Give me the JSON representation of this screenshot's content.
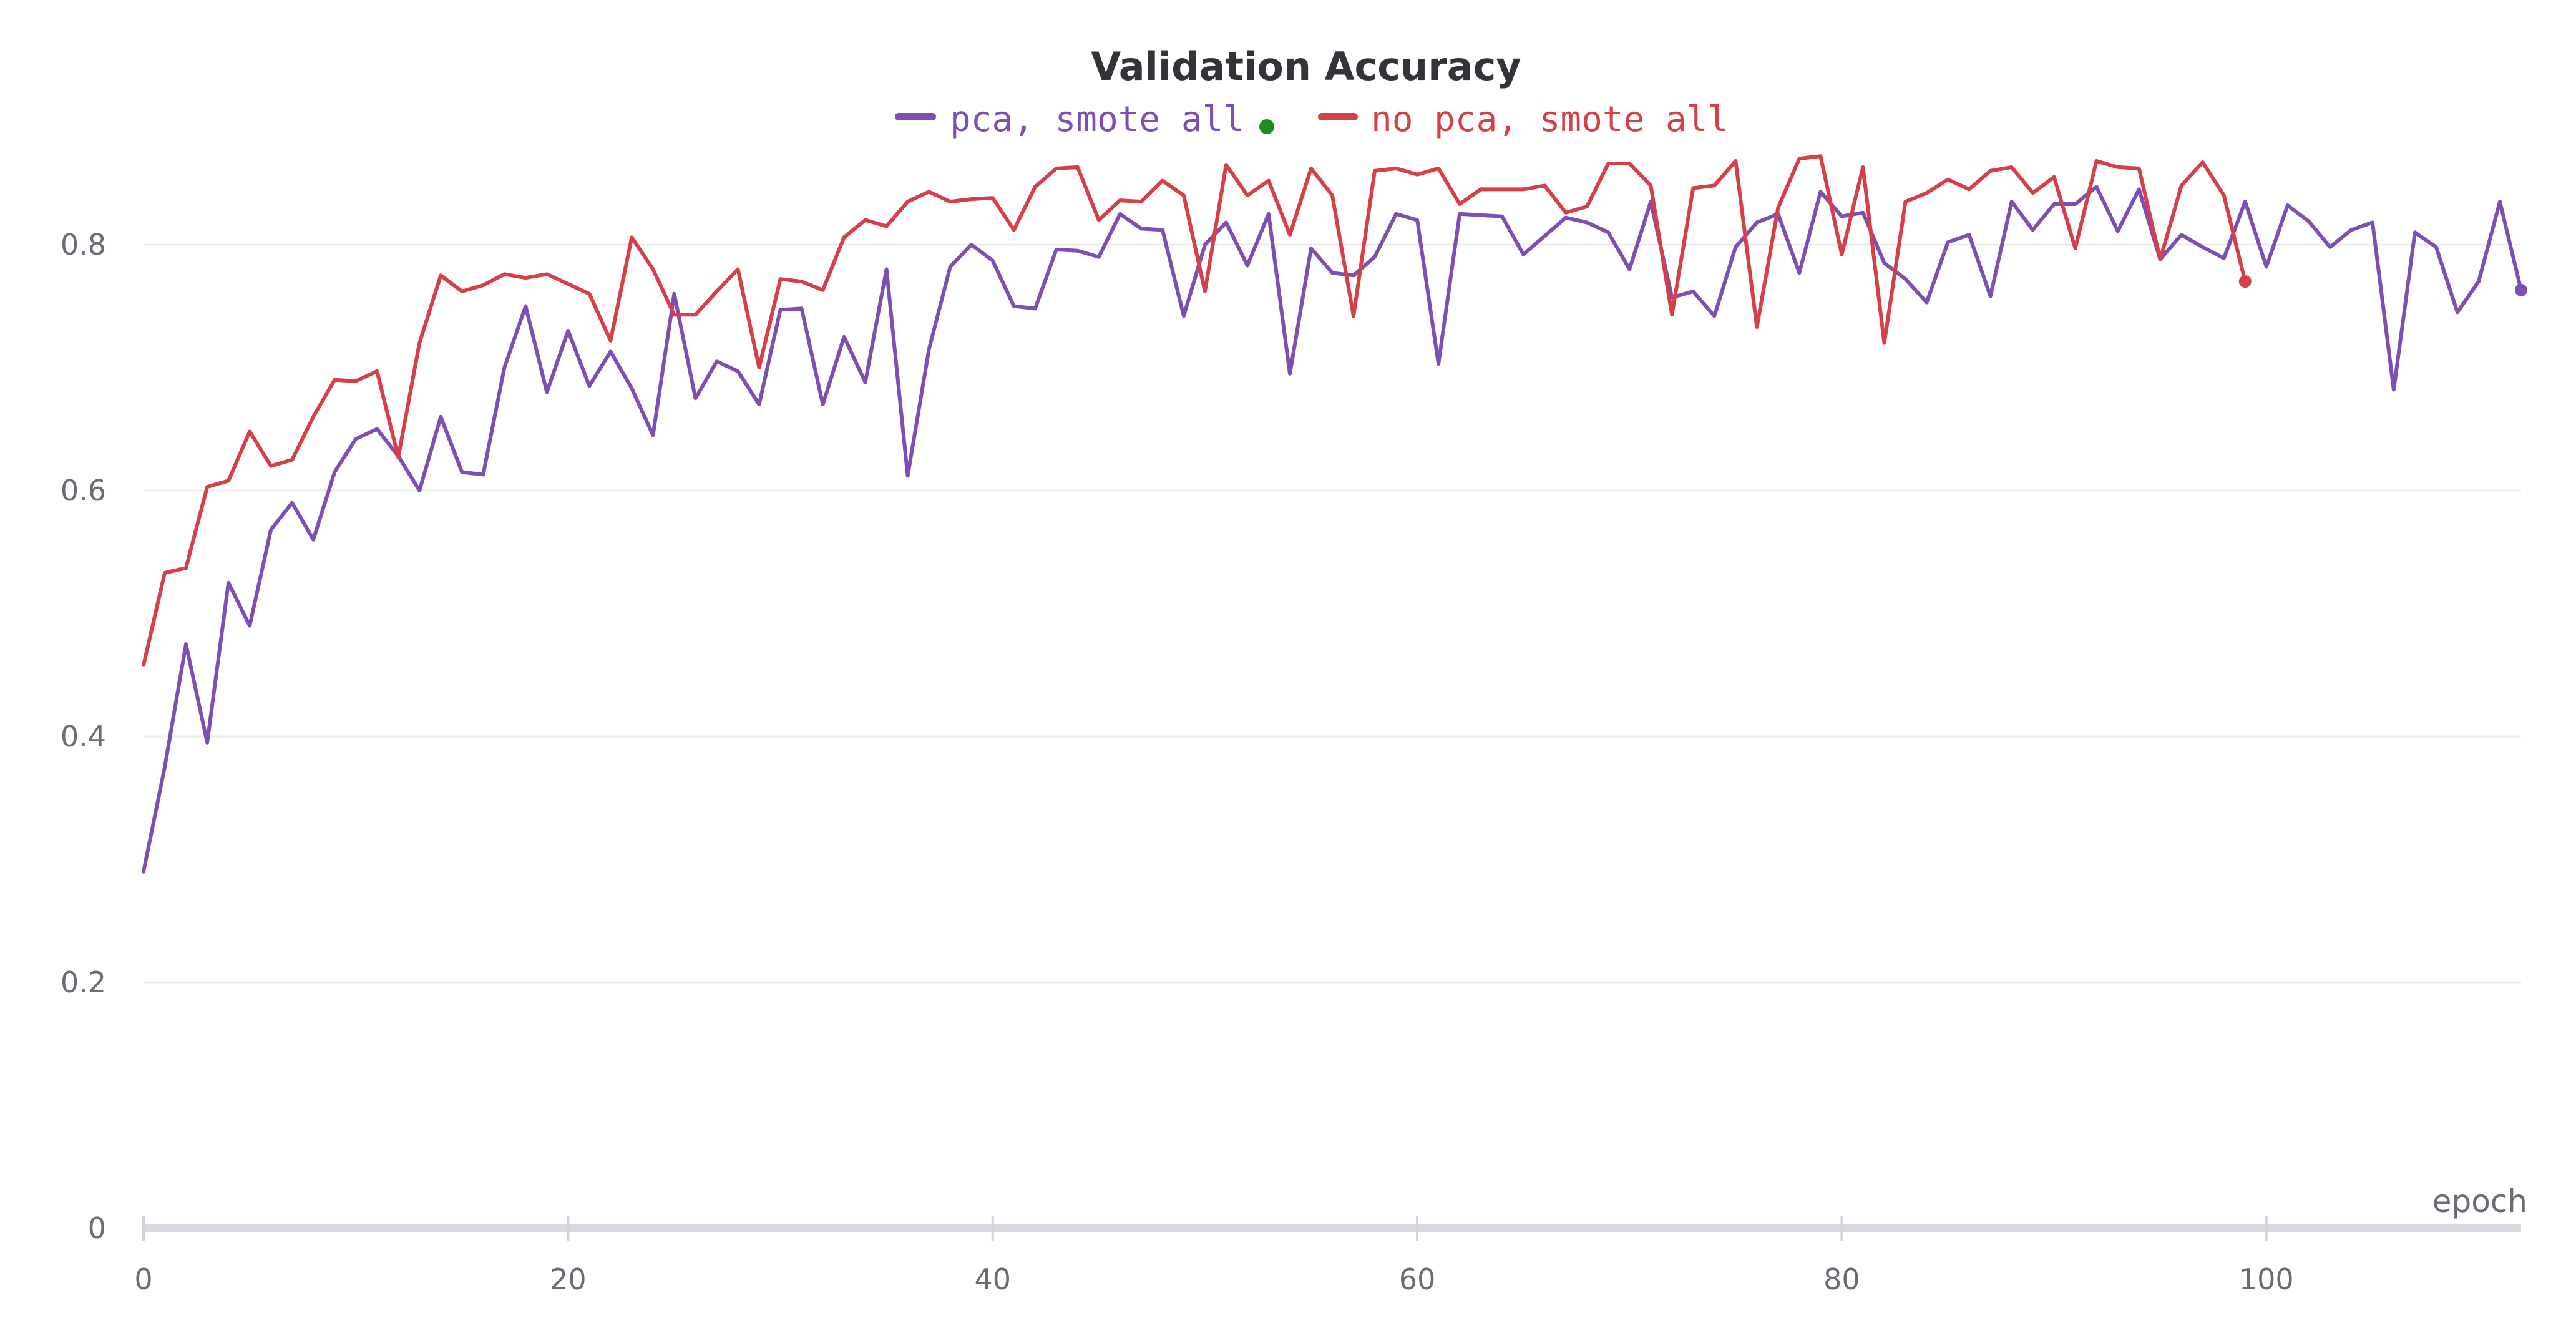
{
  "chart_data": {
    "type": "line",
    "title": "Validation Accuracy",
    "xlabel": "epoch",
    "ylabel": "",
    "xlim": [
      0,
      112
    ],
    "ylim": [
      0,
      0.9
    ],
    "x_ticks": [
      0,
      20,
      40,
      60,
      80,
      100
    ],
    "y_ticks": [
      0,
      0.2,
      0.4,
      0.6,
      0.8
    ],
    "x_tick_labels": [
      "0",
      "20",
      "40",
      "60",
      "80",
      "100"
    ],
    "y_tick_labels": [
      "0",
      "0.2",
      "0.4",
      "0.6",
      "0.8"
    ],
    "grid": true,
    "legend_position": "top-center",
    "series": [
      {
        "name": "pca, smote all",
        "color": "#7d4fb5",
        "status_dot_color": "#1e8c1e",
        "x_start": 0,
        "values": [
          0.29,
          0.375,
          0.475,
          0.395,
          0.525,
          0.49,
          0.568,
          0.59,
          0.56,
          0.615,
          0.642,
          0.65,
          0.628,
          0.6,
          0.66,
          0.615,
          0.613,
          0.7,
          0.75,
          0.68,
          0.73,
          0.685,
          0.713,
          0.683,
          0.645,
          0.76,
          0.675,
          0.705,
          0.697,
          0.67,
          0.747,
          0.748,
          0.67,
          0.725,
          0.688,
          0.78,
          0.612,
          0.715,
          0.782,
          0.8,
          0.787,
          0.75,
          0.748,
          0.796,
          0.795,
          0.79,
          0.825,
          0.813,
          0.812,
          0.742,
          0.8,
          0.818,
          0.783,
          0.825,
          0.695,
          0.797,
          0.777,
          0.775,
          0.79,
          0.825,
          0.82,
          0.703,
          0.825,
          0.824,
          0.823,
          0.792,
          0.807,
          0.822,
          0.818,
          0.81,
          0.78,
          0.835,
          0.757,
          0.762,
          0.742,
          0.798,
          0.818,
          0.825,
          0.777,
          0.843,
          0.823,
          0.826,
          0.785,
          0.772,
          0.753,
          0.802,
          0.808,
          0.758,
          0.835,
          0.812,
          0.833,
          0.833,
          0.847,
          0.811,
          0.845,
          0.788,
          0.808,
          0.798,
          0.789,
          0.835,
          0.782,
          0.832,
          0.819,
          0.798,
          0.812,
          0.818,
          0.682,
          0.81,
          0.798,
          0.745,
          0.77,
          0.835,
          0.763
        ]
      },
      {
        "name": "no pca, smote all",
        "color": "#d63f47",
        "x_start": 0,
        "values": [
          0.458,
          0.533,
          0.537,
          0.603,
          0.608,
          0.648,
          0.62,
          0.625,
          0.66,
          0.69,
          0.689,
          0.697,
          0.627,
          0.72,
          0.775,
          0.762,
          0.767,
          0.776,
          0.773,
          0.776,
          0.768,
          0.76,
          0.722,
          0.806,
          0.78,
          0.743,
          0.743,
          0.762,
          0.78,
          0.7,
          0.772,
          0.77,
          0.763,
          0.806,
          0.82,
          0.815,
          0.835,
          0.843,
          0.835,
          0.837,
          0.838,
          0.812,
          0.847,
          0.862,
          0.863,
          0.82,
          0.836,
          0.835,
          0.852,
          0.84,
          0.762,
          0.865,
          0.84,
          0.852,
          0.808,
          0.862,
          0.84,
          0.742,
          0.86,
          0.862,
          0.857,
          0.862,
          0.833,
          0.845,
          0.845,
          0.845,
          0.848,
          0.826,
          0.831,
          0.866,
          0.866,
          0.848,
          0.743,
          0.846,
          0.848,
          0.868,
          0.733,
          0.83,
          0.87,
          0.872,
          0.792,
          0.863,
          0.72,
          0.835,
          0.842,
          0.853,
          0.845,
          0.86,
          0.863,
          0.842,
          0.855,
          0.797,
          0.868,
          0.863,
          0.862,
          0.788,
          0.848,
          0.867,
          0.84,
          0.77
        ]
      }
    ]
  }
}
